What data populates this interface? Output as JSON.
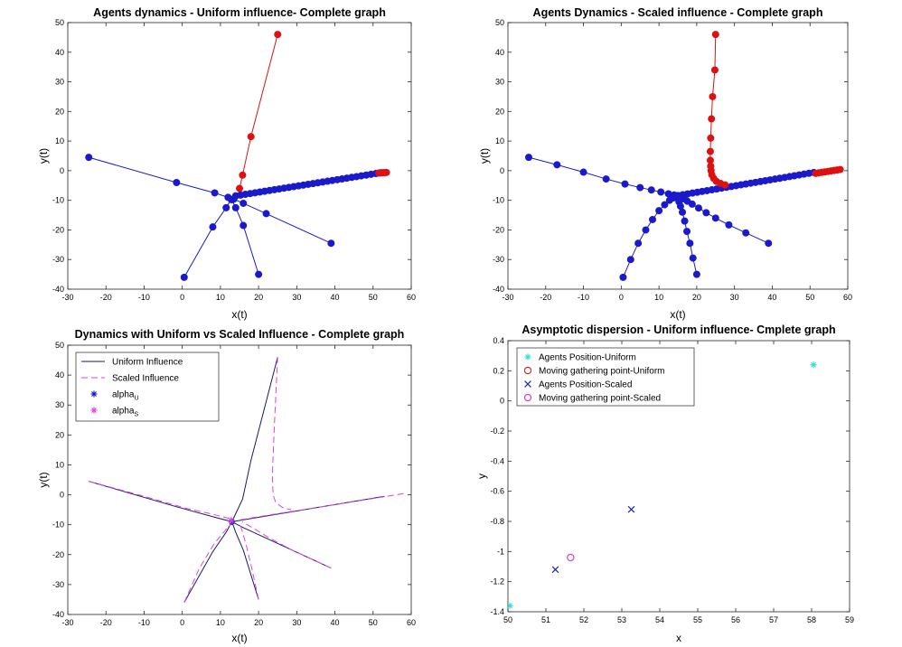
{
  "colors": {
    "blue": "#1a1acc",
    "red": "#dd1111",
    "navy": "#1a1a66",
    "magenta": "#dd44dd",
    "cyan": "#33dddd",
    "darkred": "#cc3333",
    "purple": "#cc44cc",
    "blue_x": "#2222bb"
  },
  "chart_data": [
    {
      "type": "line",
      "title": "Agents dynamics  - Uniform influence- Complete graph",
      "xlabel": "x(t)",
      "ylabel": "y(t)",
      "xlim": [
        -30,
        60
      ],
      "ylim": [
        -40,
        50
      ],
      "xticks": [
        -30,
        -20,
        -10,
        0,
        10,
        20,
        30,
        40,
        50,
        60
      ],
      "yticks": [
        -40,
        -30,
        -20,
        -10,
        0,
        10,
        20,
        30,
        40,
        50
      ],
      "grid": false,
      "series": [
        {
          "name": "agent-1",
          "color": "blue",
          "points": [
            [
              -24.5,
              4.5
            ],
            [
              -1.5,
              -4
            ],
            [
              8.5,
              -7.5
            ],
            [
              12,
              -9
            ]
          ]
        },
        {
          "name": "agent-2",
          "color": "blue",
          "points": [
            [
              0.5,
              -36
            ],
            [
              8,
              -19
            ],
            [
              11.5,
              -12.5
            ],
            [
              12.8,
              -9.7
            ]
          ]
        },
        {
          "name": "agent-3",
          "color": "blue",
          "points": [
            [
              20,
              -35
            ],
            [
              16,
              -18.5
            ],
            [
              14,
              -12.5
            ],
            [
              13,
              -9.8
            ]
          ]
        },
        {
          "name": "agent-4",
          "color": "blue",
          "points": [
            [
              39,
              -24.5
            ],
            [
              22,
              -14.5
            ],
            [
              16,
              -11
            ],
            [
              13.5,
              -9.6
            ]
          ]
        },
        {
          "name": "agent-6",
          "color": "red",
          "points": [
            [
              25,
              46
            ],
            [
              18,
              11.5
            ],
            [
              15.8,
              -1.5
            ],
            [
              15,
              -6
            ]
          ]
        },
        {
          "name": "agent-5-and-tail",
          "color": "blue",
          "points": [
            [
              52,
              -0.7
            ],
            [
              14,
              -8.5
            ]
          ],
          "dense": 30
        },
        {
          "name": "agent-6-tail",
          "color": "red",
          "points": [
            [
              53.5,
              -0.6
            ],
            [
              51.5,
              -0.8
            ]
          ],
          "dense": 4
        }
      ]
    },
    {
      "type": "line",
      "title": "Agents Dynamics  - Scaled influence - Complete graph",
      "xlabel": "x(t)",
      "ylabel": "y(t)",
      "xlim": [
        -30,
        60
      ],
      "ylim": [
        -40,
        50
      ],
      "xticks": [
        -30,
        -20,
        -10,
        0,
        10,
        20,
        30,
        40,
        50,
        60
      ],
      "yticks": [
        -40,
        -30,
        -20,
        -10,
        0,
        10,
        20,
        30,
        40,
        50
      ],
      "grid": false,
      "series": [
        {
          "name": "agent-1",
          "color": "blue",
          "points": [
            [
              -24.5,
              4.5
            ],
            [
              -17,
              2
            ],
            [
              -10,
              -0.5
            ],
            [
              -4,
              -2.8
            ],
            [
              1,
              -4.5
            ],
            [
              5,
              -5.7
            ],
            [
              8,
              -6.5
            ],
            [
              10.5,
              -7.2
            ],
            [
              12.5,
              -7.8
            ],
            [
              14,
              -8.2
            ]
          ]
        },
        {
          "name": "agent-2",
          "color": "blue",
          "points": [
            [
              0.5,
              -36
            ],
            [
              2.5,
              -30
            ],
            [
              4.5,
              -24.5
            ],
            [
              6.5,
              -20
            ],
            [
              8.3,
              -16.5
            ],
            [
              10,
              -13.5
            ],
            [
              11.5,
              -11.5
            ],
            [
              12.8,
              -10
            ],
            [
              13.8,
              -9.2
            ],
            [
              14.5,
              -8.6
            ]
          ]
        },
        {
          "name": "agent-3",
          "color": "blue",
          "points": [
            [
              20,
              -35
            ],
            [
              19,
              -29.5
            ],
            [
              18.2,
              -24.5
            ],
            [
              17.4,
              -20.5
            ],
            [
              16.8,
              -17
            ],
            [
              16.2,
              -14
            ],
            [
              15.7,
              -12
            ],
            [
              15.3,
              -10.5
            ],
            [
              15,
              -9.3
            ]
          ]
        },
        {
          "name": "agent-4",
          "color": "blue",
          "points": [
            [
              39,
              -24.5
            ],
            [
              33,
              -21
            ],
            [
              28.5,
              -18.3
            ],
            [
              25,
              -16
            ],
            [
              22.5,
              -14.2
            ],
            [
              20.5,
              -12.6
            ],
            [
              18.8,
              -11.3
            ],
            [
              17.5,
              -10.3
            ],
            [
              16.5,
              -9.5
            ],
            [
              15.7,
              -9
            ]
          ]
        },
        {
          "name": "agent-5",
          "color": "blue",
          "points": [
            [
              51,
              -0.6
            ],
            [
              15,
              -8.4
            ]
          ],
          "dense": 28
        },
        {
          "name": "agent-6",
          "color": "red",
          "points": [
            [
              25,
              46
            ],
            [
              24.8,
              34
            ],
            [
              24.2,
              25
            ],
            [
              23.9,
              17.5
            ],
            [
              23.7,
              11
            ],
            [
              23.6,
              6.5
            ],
            [
              23.6,
              3.5
            ],
            [
              23.7,
              1.5
            ],
            [
              23.8,
              0
            ],
            [
              24,
              -1.4
            ],
            [
              24.5,
              -2.6
            ],
            [
              25.2,
              -3.6
            ],
            [
              26.3,
              -4.3
            ],
            [
              27.5,
              -4.8
            ]
          ]
        },
        {
          "name": "agent-6-tail",
          "color": "red",
          "points": [
            [
              58,
              0.4
            ],
            [
              51.5,
              -0.9
            ]
          ],
          "dense": 8
        }
      ]
    },
    {
      "type": "line",
      "title": "Dynamics with Uniform vs Scaled Influence - Complete graph",
      "xlabel": "x(t)",
      "ylabel": "y(t)",
      "xlim": [
        -30,
        60
      ],
      "ylim": [
        -40,
        50
      ],
      "xticks": [
        -30,
        -20,
        -10,
        0,
        10,
        20,
        30,
        40,
        50,
        60
      ],
      "yticks": [
        -40,
        -30,
        -20,
        -10,
        0,
        10,
        20,
        30,
        40,
        50
      ],
      "grid": false,
      "legend": [
        {
          "label": "Uniform Influence",
          "sub": "",
          "marker": "line",
          "color": "navy"
        },
        {
          "label": "Scaled Influence",
          "sub": "",
          "marker": "dash",
          "color": "magenta"
        },
        {
          "label": "alpha",
          "sub": "U",
          "marker": "asterisk",
          "color": "blue"
        },
        {
          "label": "alpha",
          "sub": "S",
          "marker": "asterisk",
          "color": "magenta"
        }
      ],
      "series": [
        {
          "name": "uniform-1",
          "style": "solid",
          "color": "navy",
          "points": [
            [
              -24.5,
              4.5
            ],
            [
              -1.5,
              -4
            ],
            [
              8.5,
              -7.5
            ],
            [
              13,
              -9
            ]
          ]
        },
        {
          "name": "uniform-2",
          "style": "solid",
          "color": "navy",
          "points": [
            [
              0.5,
              -36
            ],
            [
              8,
              -19
            ],
            [
              11.5,
              -12.5
            ],
            [
              13,
              -9
            ]
          ]
        },
        {
          "name": "uniform-3",
          "style": "solid",
          "color": "navy",
          "points": [
            [
              20,
              -35
            ],
            [
              16,
              -18.5
            ],
            [
              14,
              -12.5
            ],
            [
              13,
              -9
            ]
          ]
        },
        {
          "name": "uniform-4",
          "style": "solid",
          "color": "navy",
          "points": [
            [
              39,
              -24.5
            ],
            [
              22,
              -14.5
            ],
            [
              16,
              -11
            ],
            [
              13,
              -9
            ]
          ]
        },
        {
          "name": "uniform-5",
          "style": "solid",
          "color": "navy",
          "points": [
            [
              53,
              -0.5
            ],
            [
              13,
              -9
            ]
          ]
        },
        {
          "name": "uniform-6",
          "style": "solid",
          "color": "navy",
          "points": [
            [
              25,
              46
            ],
            [
              18,
              11.5
            ],
            [
              15.8,
              -1.5
            ],
            [
              13,
              -9
            ]
          ]
        },
        {
          "name": "scaled-1",
          "style": "dashed",
          "color": "magenta",
          "points": [
            [
              -24.5,
              4.5
            ],
            [
              -10,
              -0.5
            ],
            [
              1,
              -4.5
            ],
            [
              8,
              -6.5
            ],
            [
              12,
              -7.8
            ],
            [
              13.5,
              -8.5
            ]
          ]
        },
        {
          "name": "scaled-2",
          "style": "dashed",
          "color": "magenta",
          "points": [
            [
              0.5,
              -36
            ],
            [
              4.5,
              -24.5
            ],
            [
              8.3,
              -16.5
            ],
            [
              11.5,
              -11.5
            ],
            [
              13.5,
              -9
            ]
          ]
        },
        {
          "name": "scaled-3",
          "style": "dashed",
          "color": "magenta",
          "points": [
            [
              20,
              -35
            ],
            [
              18.2,
              -24.5
            ],
            [
              16.8,
              -17
            ],
            [
              15.7,
              -12
            ],
            [
              15,
              -9.3
            ]
          ]
        },
        {
          "name": "scaled-4",
          "style": "dashed",
          "color": "magenta",
          "points": [
            [
              39,
              -24.5
            ],
            [
              28.5,
              -18.3
            ],
            [
              22.5,
              -14.2
            ],
            [
              18.8,
              -11.3
            ],
            [
              15.7,
              -9
            ]
          ]
        },
        {
          "name": "scaled-5",
          "style": "dashed",
          "color": "magenta",
          "points": [
            [
              58,
              0.4
            ],
            [
              40,
              -3.3
            ],
            [
              25,
              -6.3
            ],
            [
              15,
              -8.4
            ]
          ]
        },
        {
          "name": "scaled-6",
          "style": "dashed",
          "color": "magenta",
          "points": [
            [
              25,
              46
            ],
            [
              24.2,
              25
            ],
            [
              23.6,
              6.5
            ],
            [
              23.8,
              0
            ],
            [
              24.5,
              -2.6
            ],
            [
              26.3,
              -4.3
            ],
            [
              28.5,
              -5
            ]
          ]
        },
        {
          "name": "alpha-u",
          "style": "asterisk",
          "color": "blue",
          "points": [
            [
              13,
              -9
            ]
          ]
        },
        {
          "name": "alpha-s",
          "style": "asterisk",
          "color": "magenta",
          "points": [
            [
              12.8,
              -8.6
            ]
          ]
        }
      ]
    },
    {
      "type": "scatter",
      "title": "Asymptotic dispersion - Uniform influence- Cmplete graph",
      "xlabel": "x",
      "ylabel": "y",
      "xlim": [
        50,
        59
      ],
      "ylim": [
        -1.4,
        0.4
      ],
      "xticks": [
        50,
        51,
        52,
        53,
        54,
        55,
        56,
        57,
        58,
        59
      ],
      "yticks": [
        -1.4,
        -1.2,
        -1,
        -0.8,
        -0.6,
        -0.4,
        -0.2,
        0,
        0.2,
        0.4
      ],
      "grid": false,
      "legend": [
        {
          "label": "Agents Position-Uniform",
          "marker": "asterisk",
          "color": "cyan"
        },
        {
          "label": "Moving gathering point-Uniform",
          "marker": "circle",
          "color": "darkred"
        },
        {
          "label": "Agents Position-Scaled",
          "marker": "x",
          "color": "blue_x"
        },
        {
          "label": "Moving gathering point-Scaled",
          "marker": "circle",
          "color": "purple"
        }
      ],
      "series": [
        {
          "name": "Agents Position-Uniform",
          "marker": "asterisk",
          "color": "cyan",
          "points": [
            [
              58.05,
              0.24
            ],
            [
              50.05,
              -1.36
            ]
          ]
        },
        {
          "name": "Agents Position-Scaled",
          "marker": "x",
          "color": "blue_x",
          "points": [
            [
              53.25,
              -0.72
            ],
            [
              51.25,
              -1.12
            ]
          ]
        },
        {
          "name": "Moving gathering point-Scaled",
          "marker": "circle",
          "color": "purple",
          "points": [
            [
              51.65,
              -1.04
            ]
          ]
        }
      ]
    }
  ]
}
